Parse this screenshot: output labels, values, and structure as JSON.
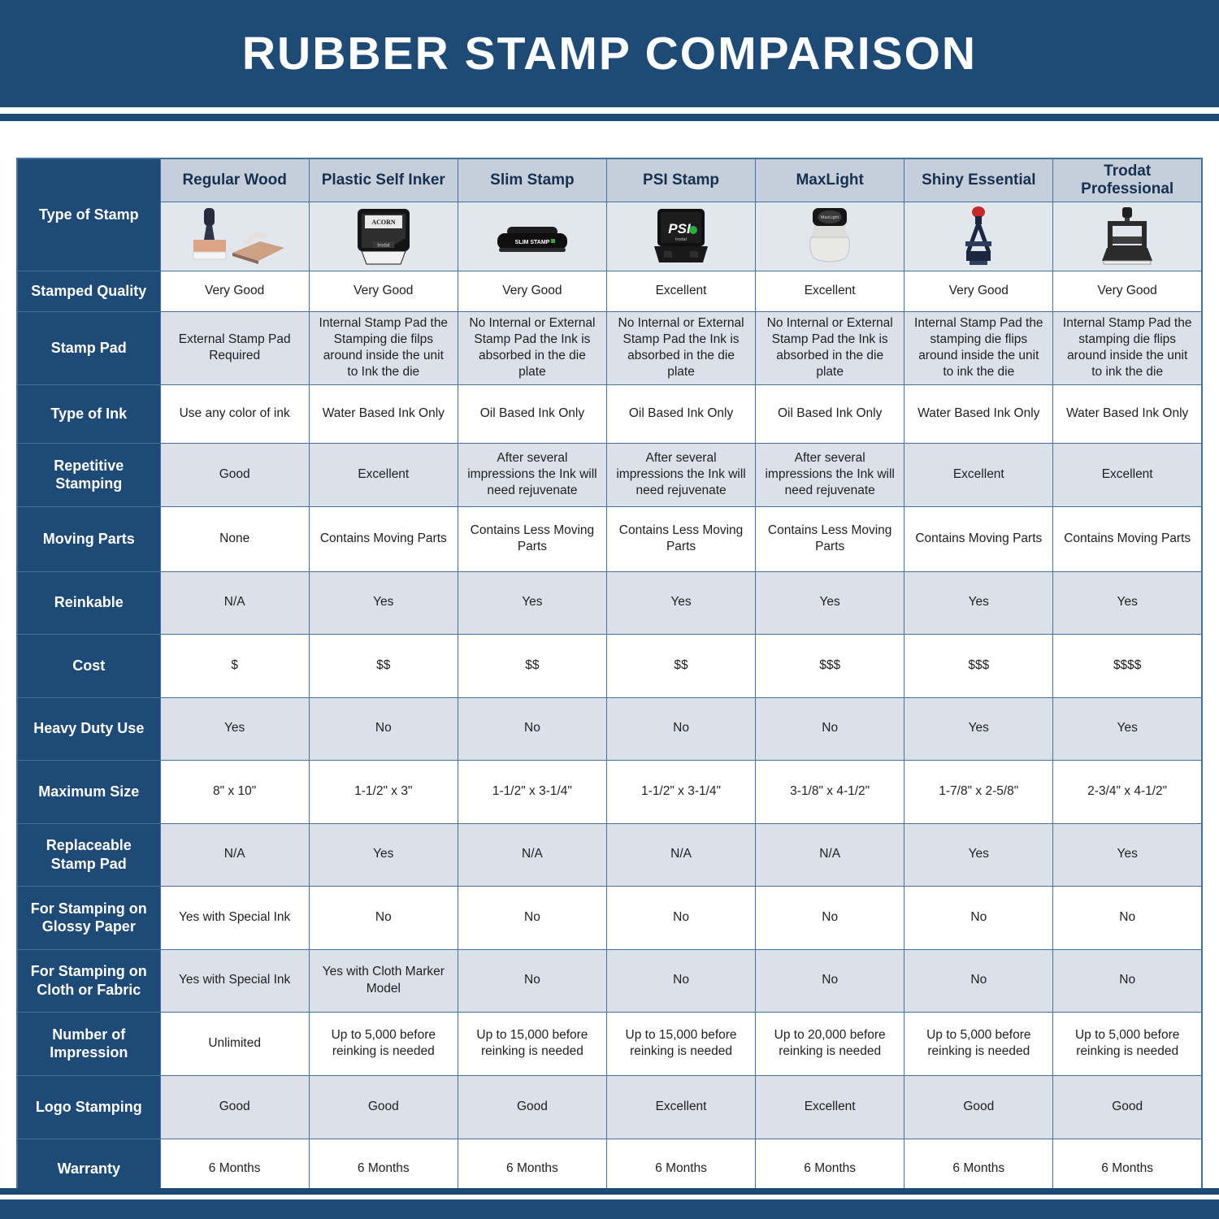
{
  "banner": {
    "title": "RUBBER STAMP COMPARISON"
  },
  "colors": {
    "accent_navy": "#1e4a76",
    "header_band": "#c5cedb",
    "alt_row": "#dbe0e9",
    "grid_line": "#46719c"
  },
  "chart_data": {
    "type": "table",
    "title": "RUBBER STAMP COMPARISON",
    "columns": [
      "Regular Wood",
      "Plastic Self Inker",
      "Slim Stamp",
      "PSI Stamp",
      "MaxLight",
      "Shiny Essential",
      "Trodat Professional"
    ],
    "image_row": {
      "label": "Type of Stamp",
      "icons": [
        "regular-wood-stamp-image",
        "plastic-self-inker-stamp-image",
        "slim-stamp-image",
        "psi-stamp-image",
        "maxlight-stamp-image",
        "shiny-essential-stamp-image",
        "trodat-professional-stamp-image"
      ]
    },
    "rows": [
      {
        "label": "Stamped Quality",
        "values": [
          "Very Good",
          "Very Good",
          "Very Good",
          "Excellent",
          "Excellent",
          "Very Good",
          "Very Good"
        ]
      },
      {
        "label": "Stamp Pad",
        "values": [
          "External Stamp Pad Required",
          "Internal Stamp Pad the Stamping die filps around inside the unit to Ink the die",
          "No Internal or External Stamp Pad the Ink is absorbed in the die plate",
          "No Internal or External Stamp Pad the Ink is absorbed in the die plate",
          "No Internal or External Stamp Pad the Ink is absorbed in the die plate",
          "Internal Stamp Pad the stamping die flips around inside the unit to ink the die",
          "Internal Stamp Pad the stamping die flips around inside the unit to ink the die"
        ]
      },
      {
        "label": "Type of Ink",
        "values": [
          "Use any color of ink",
          "Water Based Ink Only",
          "Oil Based Ink Only",
          "Oil Based Ink Only",
          "Oil Based Ink Only",
          "Water Based Ink Only",
          "Water Based Ink Only"
        ]
      },
      {
        "label": "Repetitive Stamping",
        "values": [
          "Good",
          "Excellent",
          "After several impressions the Ink will need rejuvenate",
          "After several impressions the Ink will need rejuvenate",
          "After several impressions the Ink will need rejuvenate",
          "Excellent",
          "Excellent"
        ]
      },
      {
        "label": "Moving Parts",
        "values": [
          "None",
          "Contains Moving Parts",
          "Contains Less Moving Parts",
          "Contains Less Moving Parts",
          "Contains Less Moving Parts",
          "Contains Moving Parts",
          "Contains Moving Parts"
        ]
      },
      {
        "label": "Reinkable",
        "values": [
          "N/A",
          "Yes",
          "Yes",
          "Yes",
          "Yes",
          "Yes",
          "Yes"
        ]
      },
      {
        "label": "Cost",
        "values": [
          "$",
          "$$",
          "$$",
          "$$",
          "$$$",
          "$$$",
          "$$$$"
        ]
      },
      {
        "label": "Heavy Duty Use",
        "values": [
          "Yes",
          "No",
          "No",
          "No",
          "No",
          "Yes",
          "Yes"
        ]
      },
      {
        "label": "Maximum Size",
        "values": [
          "8\" x 10\"",
          "1-1/2\" x 3\"",
          "1-1/2\" x 3-1/4\"",
          "1-1/2\" x 3-1/4\"",
          "3-1/8\" x 4-1/2\"",
          "1-7/8\" x 2-5/8\"",
          "2-3/4\" x 4-1/2\""
        ]
      },
      {
        "label": "Replaceable Stamp Pad",
        "values": [
          "N/A",
          "Yes",
          "N/A",
          "N/A",
          "N/A",
          "Yes",
          "Yes"
        ]
      },
      {
        "label": "For Stamping on Glossy Paper",
        "values": [
          "Yes with Special Ink",
          "No",
          "No",
          "No",
          "No",
          "No",
          "No"
        ]
      },
      {
        "label": "For Stamping on Cloth or Fabric",
        "values": [
          "Yes with Special Ink",
          "Yes with Cloth Marker Model",
          "No",
          "No",
          "No",
          "No",
          "No"
        ]
      },
      {
        "label": "Number of Impression",
        "values": [
          "Unlimited",
          "Up to 5,000 before reinking is needed",
          "Up to 15,000 before reinking is needed",
          "Up to 15,000 before reinking is needed",
          "Up to 20,000 before reinking is needed",
          "Up to 5,000 before reinking is needed",
          "Up to 5,000 before reinking is needed"
        ]
      },
      {
        "label": "Logo Stamping",
        "values": [
          "Good",
          "Good",
          "Good",
          "Excellent",
          "Excellent",
          "Good",
          "Good"
        ]
      },
      {
        "label": "Warranty",
        "values": [
          "6 Months",
          "6 Months",
          "6 Months",
          "6 Months",
          "6 Months",
          "6 Months",
          "6 Months"
        ]
      }
    ]
  }
}
